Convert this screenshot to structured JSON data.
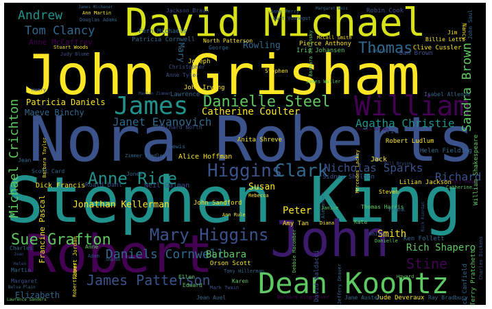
{
  "title": "",
  "palette": {
    "background": "#000000",
    "yellow": "#fde725",
    "teal": "#21918c",
    "green": "#3bb56e",
    "purple": "#440154",
    "indigo": "#3b528b",
    "blue": "#31688e",
    "mint": "#5ec962",
    "gray": "#6d7a8a"
  },
  "words": [
    "Stephen King",
    "Nora Roberts",
    "John Grisham",
    "David Michael",
    "Robert",
    "John",
    "Dean Koontz",
    "James",
    "William",
    "Danielle Steel",
    "Mary Higgins",
    "Higgins",
    "Clark",
    "Anne Rice",
    "Sue Grafton",
    "James Patterson",
    "Daniels Cornwell",
    "Agatha Christie",
    "Janet Evanovich",
    "Michael Crichton",
    "Thomas",
    "Sandra Brown",
    "Richard",
    "Stine",
    "Nicholas Sparks",
    "Tom Clancy",
    "Andrew",
    "Catherine Coulter",
    "Jonathan Kellerman",
    "Barbara",
    "Patricia Daniels",
    "Maeve Binchy",
    "Rich Shapero",
    "Anne McCaffrey",
    "Susan",
    "Peter",
    "Smith",
    "Elizabeth",
    "Rowling",
    "Dick Francis",
    "Alice Hoffman",
    "Neil Gaiman",
    "John Sandford",
    "Jude Deveraux",
    "Jack Canfield",
    "Terry Pratchett",
    "Robert Ludlum",
    "Amy Tan",
    "Anita Shreve",
    "Patricia Cornwell",
    "Danielle",
    "Ken Follett",
    "Lilian Jackson",
    "Orson Scott",
    "Jackson Braun",
    "Robin Cook",
    "Fern Michaels",
    "North Patterson",
    "Pierce Anthony",
    "Iris Johansen",
    "Clive Cussler",
    "Billie Letts",
    "Dan Brown",
    "Isabel Allende",
    "William Shakespeare",
    "Helen Fielding",
    "Richard North",
    "Sidney Sheldon",
    "Thomas Harris",
    "Roald Dahl",
    "Jean Auel",
    "Ray Bradbury",
    "Jane Austen",
    "Francine Pascal",
    "David Baldacci",
    "Mark Twain",
    "Joseph",
    "Mary",
    "Anne Tyler",
    "John Irving",
    "Lawrence",
    "Christopher",
    "George",
    "Stephen",
    "Laura",
    "Jack",
    "Eric",
    "Kate",
    "Frank",
    "Steven",
    "Ellen",
    "Edward",
    "Karen",
    "Charles",
    "Martin",
    "Margaret",
    "Anne",
    "Adam",
    "Henry",
    "Jean",
    "Jones",
    "Scott Card",
    "Lewis",
    "Zimmer Bradley",
    "James Michener",
    "Ann Martin",
    "Douglas Adams",
    "Stuart Woods",
    "Judy Blume",
    "Anne Perry",
    "Kurt Vonnegut",
    "Margaret Weis",
    "McCall Smith",
    "Lawrence Sanders",
    "Belva Plain",
    "Tony Hillerman",
    "Barbara Kingsolver",
    "Bill Bryson",
    "Rebecca",
    "White",
    "Howard",
    "Catherine",
    "Tami Hoag",
    "Jim",
    "Nancy",
    "John Saul",
    "James Waller",
    "Rita Mae",
    "Martha Grimes",
    "Mercedes Lackey",
    "Debbie Macomber",
    "Barbara Delinsky",
    "Gregory",
    "Roberts",
    "Jeffery Deaver",
    "Alexander",
    "Rick Riordan",
    "Leslie",
    "Diana",
    "Janice",
    "Amanda",
    "Laurell",
    "Eileen",
    "Nelson DeMille",
    "Sharon",
    "Kathy",
    "Toni Morrison",
    "Ruth",
    "Kyle",
    "Irving",
    "Sarah",
    "Mark",
    "Ed",
    "Ann Rule",
    "Helen",
    "Joan",
    "Marion Zimmer",
    "Robert Jordan",
    "Laura Ingalls",
    "Robert James",
    "Charles Dickens",
    "Jamie",
    "Taylor",
    "Barbara Taylor",
    "Anne Rivers",
    "Mary Clark",
    "Janet Dailey"
  ]
}
